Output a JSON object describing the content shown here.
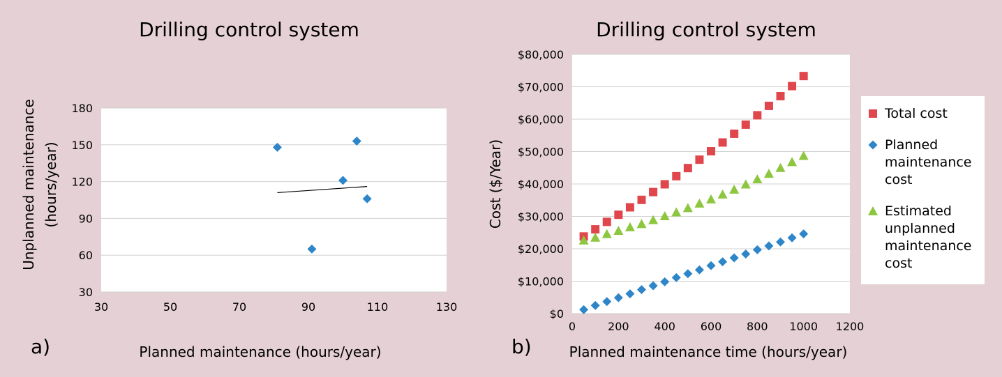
{
  "chart_data": [
    {
      "type": "scatter",
      "panel_label": "a)",
      "title": "Drilling control system",
      "xlabel": "Planned maintenance (hours/year)",
      "ylabel": [
        "Unplanned maintenance",
        "(hours/year)"
      ],
      "xlim": [
        30,
        130
      ],
      "ylim": [
        30,
        180
      ],
      "xticks": [
        "30",
        "50",
        "70",
        "90",
        "110",
        "130"
      ],
      "yticks": [
        "30",
        "60",
        "90",
        "120",
        "150",
        "180"
      ],
      "grid": "horizontal",
      "series": [
        {
          "marker": "diamond",
          "color": "#2e86c8",
          "points": [
            {
              "x": 81,
              "y": 148
            },
            {
              "x": 91,
              "y": 65
            },
            {
              "x": 100,
              "y": 121
            },
            {
              "x": 104,
              "y": 153
            },
            {
              "x": 107,
              "y": 106
            }
          ]
        }
      ],
      "trendline": {
        "x": [
          81,
          107
        ],
        "y": [
          111,
          116
        ],
        "color": "#000000"
      }
    },
    {
      "type": "scatter",
      "panel_label": "b)",
      "title": "Drilling control system",
      "xlabel": "Planned maintenance time (hours/year)",
      "ylabel": "Cost ($/Year)",
      "xlim": [
        0,
        1200
      ],
      "ylim": [
        0,
        80000
      ],
      "xticks": [
        "0",
        "200",
        "400",
        "600",
        "800",
        "1000",
        "1200"
      ],
      "yticks": [
        "$0",
        "$10,000",
        "$20,000",
        "$30,000",
        "$40,000",
        "$50,000",
        "$60,000",
        "$70,000",
        "$80,000"
      ],
      "grid": "horizontal",
      "legend_position": "right",
      "x": [
        50,
        100,
        150,
        200,
        250,
        300,
        350,
        400,
        450,
        500,
        550,
        600,
        650,
        700,
        750,
        800,
        850,
        900,
        950,
        1000
      ],
      "series": [
        {
          "name": "Total cost",
          "legend_lines": [
            "Total cost"
          ],
          "marker": "square",
          "color": "#e0474c",
          "values": [
            23800,
            26000,
            28300,
            30500,
            32800,
            35100,
            37500,
            39900,
            42400,
            44900,
            47500,
            50100,
            52800,
            55500,
            58300,
            61200,
            64100,
            67100,
            70200,
            73300
          ]
        },
        {
          "name": "Planned maintenance cost",
          "legend_lines": [
            "Planned",
            "maintenance",
            "cost"
          ],
          "marker": "diamond",
          "color": "#2e86c8",
          "values": [
            1200,
            2500,
            3700,
            4900,
            6100,
            7400,
            8600,
            9800,
            11100,
            12300,
            13500,
            14800,
            16000,
            17200,
            18400,
            19700,
            20900,
            22100,
            23400,
            24600
          ]
        },
        {
          "name": "Estimated unplanned maintenance cost",
          "legend_lines": [
            "Estimated",
            "unplanned",
            "maintenance",
            "cost"
          ],
          "marker": "triangle",
          "color": "#8dc63f",
          "values": [
            22600,
            23500,
            24600,
            25600,
            26700,
            27700,
            28900,
            30100,
            31300,
            32600,
            34000,
            35300,
            36800,
            38300,
            39900,
            41500,
            43200,
            45000,
            46800,
            48700
          ]
        }
      ]
    }
  ]
}
